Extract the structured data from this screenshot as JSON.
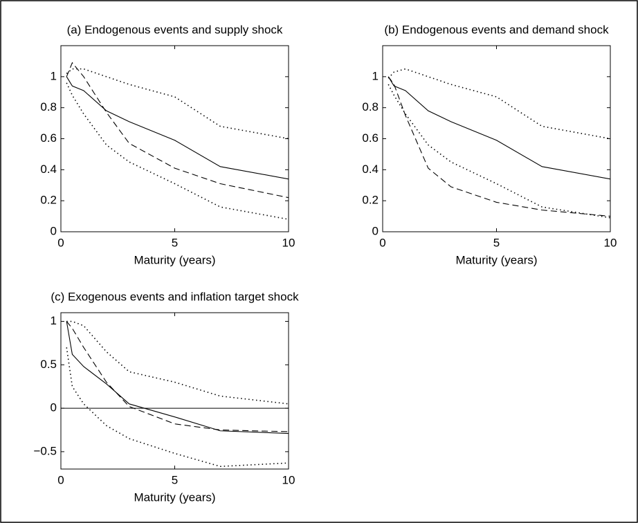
{
  "chart_data": [
    {
      "type": "line",
      "title": "(a) Endogenous events and supply shock",
      "xlabel": "Maturity (years)",
      "x": [
        0.25,
        0.5,
        1,
        2,
        3,
        5,
        7,
        10
      ],
      "xlim": [
        0,
        10
      ],
      "xticks": [
        0,
        5,
        10
      ],
      "ylim": [
        0,
        1.2
      ],
      "yticks": [
        0,
        0.2,
        0.4,
        0.6,
        0.8,
        1
      ],
      "series": [
        {
          "color": "#000000",
          "style": "solid",
          "values": [
            1.0,
            0.94,
            0.91,
            0.78,
            0.71,
            0.59,
            0.42,
            0.34
          ]
        },
        {
          "color": "#000000",
          "style": "dashed",
          "values": [
            1.0,
            1.09,
            1.0,
            0.77,
            0.57,
            0.41,
            0.31,
            0.22
          ]
        },
        {
          "color": "#000000",
          "style": "dotted",
          "values": [
            1.02,
            1.05,
            1.05,
            1.0,
            0.95,
            0.87,
            0.68,
            0.6
          ]
        },
        {
          "color": "#000000",
          "style": "dotted",
          "values": [
            0.96,
            0.88,
            0.76,
            0.56,
            0.45,
            0.31,
            0.16,
            0.08
          ]
        }
      ]
    },
    {
      "type": "line",
      "title": "(b) Endogenous events and demand shock",
      "xlabel": "Maturity (years)",
      "x": [
        0.25,
        0.5,
        1,
        2,
        3,
        5,
        7,
        10
      ],
      "xlim": [
        0,
        10
      ],
      "xticks": [
        0,
        5,
        10
      ],
      "ylim": [
        0,
        1.2
      ],
      "yticks": [
        0,
        0.2,
        0.4,
        0.6,
        0.8,
        1
      ],
      "series": [
        {
          "color": "#000000",
          "style": "solid",
          "values": [
            1.0,
            0.94,
            0.91,
            0.78,
            0.71,
            0.59,
            0.42,
            0.34
          ]
        },
        {
          "color": "#000000",
          "style": "dashed",
          "values": [
            1.0,
            0.95,
            0.75,
            0.41,
            0.29,
            0.19,
            0.14,
            0.1
          ]
        },
        {
          "color": "#000000",
          "style": "dotted",
          "values": [
            0.99,
            1.03,
            1.05,
            1.0,
            0.95,
            0.87,
            0.68,
            0.6
          ]
        },
        {
          "color": "#000000",
          "style": "dotted",
          "values": [
            0.95,
            0.88,
            0.76,
            0.56,
            0.45,
            0.31,
            0.16,
            0.09
          ]
        }
      ]
    },
    {
      "type": "line",
      "title": "(c) Exogenous events and inflation target shock",
      "xlabel": "Maturity (years)",
      "x": [
        0.25,
        0.5,
        1,
        2,
        3,
        5,
        7,
        10
      ],
      "xlim": [
        0,
        10
      ],
      "xticks": [
        0,
        5,
        10
      ],
      "ylim": [
        -0.7,
        1.1
      ],
      "yticks": [
        {
          "value": -0.5,
          "label": "−0.5"
        },
        0,
        0.5,
        1
      ],
      "hlines": [
        0
      ],
      "series": [
        {
          "color": "#000000",
          "style": "solid",
          "values": [
            1.0,
            0.62,
            0.48,
            0.28,
            0.05,
            -0.1,
            -0.26,
            -0.29
          ]
        },
        {
          "color": "#000000",
          "style": "dashed",
          "values": [
            1.0,
            0.92,
            0.7,
            0.3,
            0.02,
            -0.18,
            -0.25,
            -0.27
          ]
        },
        {
          "color": "#000000",
          "style": "dotted",
          "values": [
            1.0,
            1.0,
            0.95,
            0.65,
            0.42,
            0.3,
            0.14,
            0.05
          ]
        },
        {
          "color": "#000000",
          "style": "dotted",
          "values": [
            0.7,
            0.25,
            0.05,
            -0.2,
            -0.35,
            -0.52,
            -0.67,
            -0.63
          ]
        }
      ]
    }
  ]
}
